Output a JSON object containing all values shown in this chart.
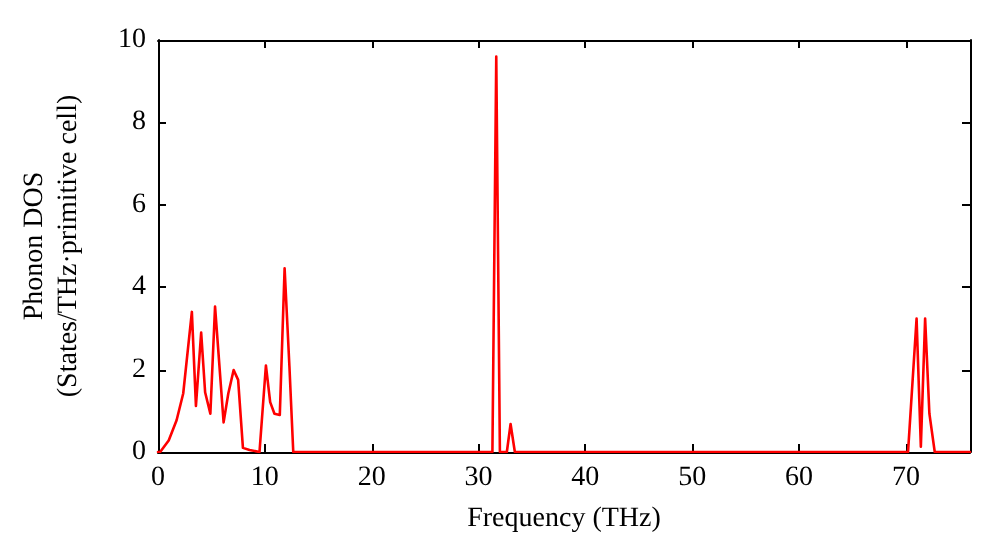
{
  "chart_data": {
    "type": "line",
    "xlabel": "Frequency (THz)",
    "ylabel": "Phonon DOS\n(States/THz·primitive cell)",
    "x": [
      0,
      0.2,
      1.0,
      1.74,
      2.36,
      3.17,
      3.55,
      4.04,
      4.41,
      4.9,
      5.34,
      6.14,
      6.58,
      7.08,
      7.5,
      7.95,
      8.57,
      9.5,
      10.1,
      10.5,
      10.9,
      11.4,
      11.85,
      12.3,
      12.66,
      31.3,
      31.66,
      32.0,
      32.65,
      33.0,
      33.4,
      70.2,
      71.0,
      71.4,
      71.8,
      72.2,
      72.7,
      76
    ],
    "series": [
      {
        "color": "#ff0000",
        "values": [
          0,
          0,
          0.28,
          0.77,
          1.42,
          3.4,
          1.12,
          2.9,
          1.45,
          0.93,
          3.53,
          0.72,
          1.42,
          1.99,
          1.75,
          0.1,
          0.05,
          0,
          2.1,
          1.21,
          0.93,
          0.9,
          4.46,
          2.08,
          0,
          0,
          9.6,
          0,
          0,
          0.68,
          0,
          0,
          3.24,
          0.13,
          3.24,
          0.93,
          0,
          0
        ]
      }
    ],
    "xlim": [
      0,
      76
    ],
    "xticks": [
      0,
      10,
      20,
      30,
      40,
      50,
      60,
      70
    ],
    "ylim": [
      0,
      10
    ],
    "yticks": [
      0,
      2,
      4,
      6,
      8,
      10
    ],
    "grid": false,
    "marker": "none",
    "line_style": "solid"
  }
}
